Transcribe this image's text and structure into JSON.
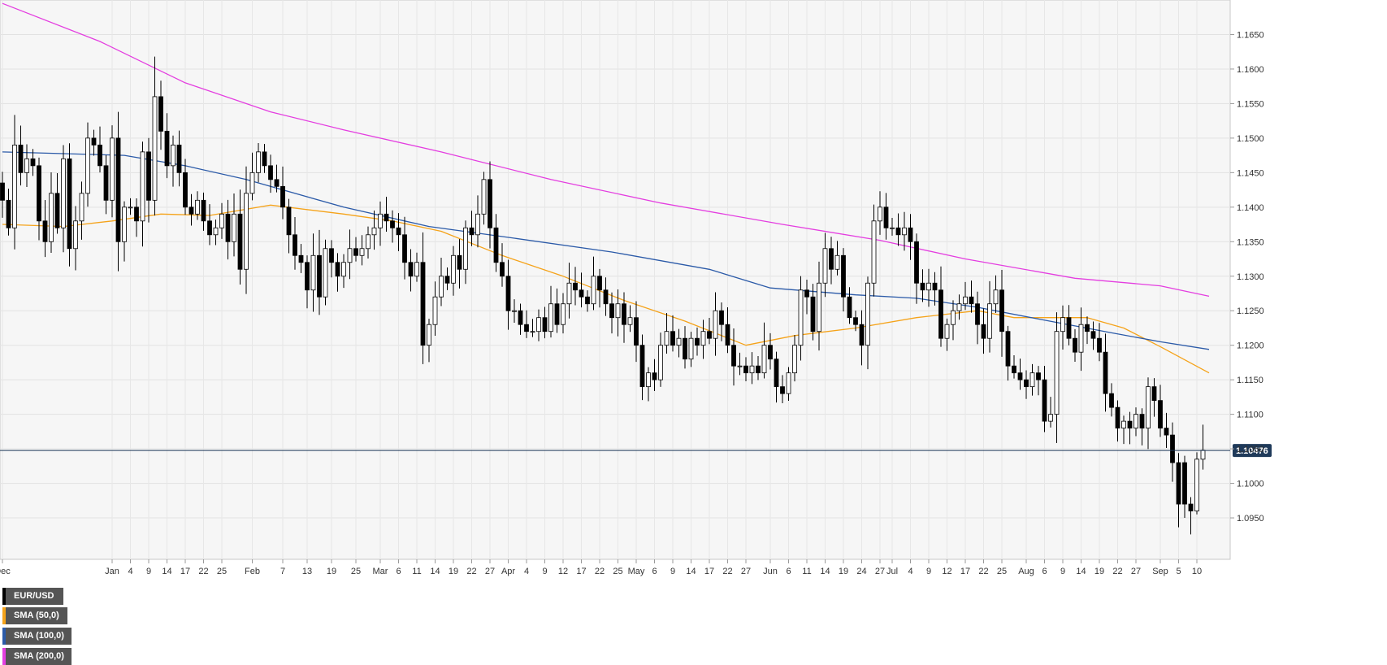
{
  "chart_data": {
    "type": "candlestick",
    "symbol": "EUR/USD",
    "last_price_label": "1.10476",
    "last_price": 1.10476,
    "ylim": [
      1.089,
      1.17
    ],
    "y_ticks": [
      "1.1650",
      "1.1600",
      "1.1550",
      "1.1500",
      "1.1450",
      "1.1400",
      "1.1350",
      "1.1300",
      "1.1250",
      "1.1200",
      "1.1150",
      "1.1100",
      "1.1050",
      "1.1000",
      "1.0950"
    ],
    "x_ticks": [
      {
        "label": "Dec",
        "bar": 0
      },
      {
        "label": "Jan",
        "bar": 18
      },
      {
        "label": "4",
        "bar": 21
      },
      {
        "label": "9",
        "bar": 24
      },
      {
        "label": "14",
        "bar": 27
      },
      {
        "label": "17",
        "bar": 30
      },
      {
        "label": "22",
        "bar": 33
      },
      {
        "label": "25",
        "bar": 36
      },
      {
        "label": "Feb",
        "bar": 41
      },
      {
        "label": "7",
        "bar": 46
      },
      {
        "label": "13",
        "bar": 50
      },
      {
        "label": "19",
        "bar": 54
      },
      {
        "label": "25",
        "bar": 58
      },
      {
        "label": "Mar",
        "bar": 62
      },
      {
        "label": "6",
        "bar": 65
      },
      {
        "label": "11",
        "bar": 68
      },
      {
        "label": "14",
        "bar": 71
      },
      {
        "label": "19",
        "bar": 74
      },
      {
        "label": "22",
        "bar": 77
      },
      {
        "label": "27",
        "bar": 80
      },
      {
        "label": "Apr",
        "bar": 83
      },
      {
        "label": "4",
        "bar": 86
      },
      {
        "label": "9",
        "bar": 89
      },
      {
        "label": "12",
        "bar": 92
      },
      {
        "label": "17",
        "bar": 95
      },
      {
        "label": "22",
        "bar": 98
      },
      {
        "label": "25",
        "bar": 101
      },
      {
        "label": "May",
        "bar": 104
      },
      {
        "label": "6",
        "bar": 107
      },
      {
        "label": "9",
        "bar": 110
      },
      {
        "label": "14",
        "bar": 113
      },
      {
        "label": "17",
        "bar": 116
      },
      {
        "label": "22",
        "bar": 119
      },
      {
        "label": "27",
        "bar": 122
      },
      {
        "label": "Jun",
        "bar": 126
      },
      {
        "label": "6",
        "bar": 129
      },
      {
        "label": "11",
        "bar": 132
      },
      {
        "label": "14",
        "bar": 135
      },
      {
        "label": "19",
        "bar": 138
      },
      {
        "label": "24",
        "bar": 141
      },
      {
        "label": "27",
        "bar": 144
      },
      {
        "label": "Jul",
        "bar": 146
      },
      {
        "label": "4",
        "bar": 149
      },
      {
        "label": "9",
        "bar": 152
      },
      {
        "label": "12",
        "bar": 155
      },
      {
        "label": "17",
        "bar": 158
      },
      {
        "label": "22",
        "bar": 161
      },
      {
        "label": "25",
        "bar": 164
      },
      {
        "label": "Aug",
        "bar": 168
      },
      {
        "label": "6",
        "bar": 171
      },
      {
        "label": "9",
        "bar": 174
      },
      {
        "label": "14",
        "bar": 177
      },
      {
        "label": "19",
        "bar": 180
      },
      {
        "label": "22",
        "bar": 183
      },
      {
        "label": "27",
        "bar": 186
      },
      {
        "label": "Sep",
        "bar": 190
      },
      {
        "label": "5",
        "bar": 193
      },
      {
        "label": "10",
        "bar": 196
      }
    ],
    "closes": [
      1.141,
      1.137,
      1.149,
      1.145,
      1.147,
      1.146,
      1.138,
      1.135,
      1.142,
      1.137,
      1.147,
      1.134,
      1.138,
      1.142,
      1.15,
      1.149,
      1.146,
      1.141,
      1.15,
      1.135,
      1.14,
      1.14,
      1.138,
      1.148,
      1.141,
      1.156,
      1.151,
      1.146,
      1.149,
      1.145,
      1.14,
      1.139,
      1.141,
      1.138,
      1.136,
      1.137,
      1.139,
      1.135,
      1.139,
      1.131,
      1.142,
      1.145,
      1.148,
      1.146,
      1.144,
      1.143,
      1.14,
      1.136,
      1.133,
      1.132,
      1.128,
      1.133,
      1.127,
      1.134,
      1.132,
      1.13,
      1.132,
      1.134,
      1.133,
      1.134,
      1.136,
      1.137,
      1.139,
      1.138,
      1.137,
      1.136,
      1.132,
      1.13,
      1.132,
      1.12,
      1.123,
      1.127,
      1.13,
      1.129,
      1.133,
      1.131,
      1.137,
      1.136,
      1.139,
      1.144,
      1.137,
      1.132,
      1.13,
      1.125,
      1.125,
      1.123,
      1.122,
      1.122,
      1.124,
      1.122,
      1.126,
      1.123,
      1.126,
      1.129,
      1.128,
      1.127,
      1.126,
      1.13,
      1.128,
      1.126,
      1.124,
      1.126,
      1.123,
      1.124,
      1.12,
      1.114,
      1.116,
      1.115,
      1.12,
      1.122,
      1.12,
      1.121,
      1.118,
      1.121,
      1.12,
      1.122,
      1.121,
      1.125,
      1.123,
      1.12,
      1.117,
      1.117,
      1.116,
      1.117,
      1.116,
      1.12,
      1.118,
      1.114,
      1.113,
      1.116,
      1.12,
      1.128,
      1.127,
      1.122,
      1.129,
      1.134,
      1.131,
      1.133,
      1.127,
      1.124,
      1.123,
      1.12,
      1.129,
      1.138,
      1.14,
      1.137,
      1.137,
      1.136,
      1.137,
      1.135,
      1.129,
      1.128,
      1.129,
      1.128,
      1.121,
      1.123,
      1.125,
      1.126,
      1.127,
      1.126,
      1.123,
      1.121,
      1.126,
      1.128,
      1.122,
      1.117,
      1.116,
      1.115,
      1.114,
      1.116,
      1.115,
      1.109,
      1.11,
      1.122,
      1.124,
      1.121,
      1.119,
      1.123,
      1.122,
      1.121,
      1.119,
      1.113,
      1.111,
      1.108,
      1.109,
      1.108,
      1.11,
      1.108,
      1.114,
      1.112,
      1.108,
      1.107,
      1.103,
      1.097,
      1.096,
      1.097,
      1.104,
      1.105
    ],
    "last_candles": [
      {
        "open": 1.103,
        "high": 1.104,
        "low": 1.095,
        "close": 1.097
      },
      {
        "open": 1.097,
        "high": 1.098,
        "low": 1.0926,
        "close": 1.096
      },
      {
        "open": 1.096,
        "high": 1.1045,
        "low": 1.0955,
        "close": 1.1035
      },
      {
        "open": 1.1035,
        "high": 1.1085,
        "low": 1.102,
        "close": 1.1048
      }
    ],
    "series": [
      {
        "name": "SMA (50,0)",
        "color": "#f5a31a",
        "kind": "sma",
        "period": 50,
        "start_bar": 0,
        "anchors": [
          [
            0,
            1.1375
          ],
          [
            10,
            1.1372
          ],
          [
            18,
            1.138
          ],
          [
            26,
            1.139
          ],
          [
            34,
            1.1388
          ],
          [
            44,
            1.1403
          ],
          [
            56,
            1.139
          ],
          [
            64,
            1.138
          ],
          [
            72,
            1.1365
          ],
          [
            82,
            1.133
          ],
          [
            92,
            1.13
          ],
          [
            102,
            1.1265
          ],
          [
            112,
            1.1235
          ],
          [
            122,
            1.12
          ],
          [
            130,
            1.1214
          ],
          [
            140,
            1.1225
          ],
          [
            150,
            1.124
          ],
          [
            160,
            1.125
          ],
          [
            166,
            1.124
          ],
          [
            178,
            1.124
          ],
          [
            184,
            1.1225
          ],
          [
            190,
            1.1198
          ],
          [
            198,
            1.116
          ]
        ]
      },
      {
        "name": "SMA (100,0)",
        "color": "#2b5aa8",
        "kind": "sma",
        "period": 100,
        "start_bar": 0,
        "anchors": [
          [
            0,
            1.148
          ],
          [
            20,
            1.1475
          ],
          [
            30,
            1.146
          ],
          [
            40,
            1.144
          ],
          [
            56,
            1.14
          ],
          [
            70,
            1.1372
          ],
          [
            84,
            1.1355
          ],
          [
            100,
            1.1335
          ],
          [
            116,
            1.131
          ],
          [
            126,
            1.1283
          ],
          [
            140,
            1.1273
          ],
          [
            150,
            1.1268
          ],
          [
            160,
            1.1255
          ],
          [
            170,
            1.1238
          ],
          [
            182,
            1.1218
          ],
          [
            190,
            1.1205
          ],
          [
            198,
            1.1194
          ]
        ]
      },
      {
        "name": "SMA (200,0)",
        "color": "#e43ee0",
        "kind": "sma",
        "period": 200,
        "start_bar": 0,
        "anchors": [
          [
            0,
            1.1695
          ],
          [
            16,
            1.164
          ],
          [
            30,
            1.158
          ],
          [
            44,
            1.1538
          ],
          [
            56,
            1.1512
          ],
          [
            72,
            1.148
          ],
          [
            90,
            1.144
          ],
          [
            108,
            1.1406
          ],
          [
            128,
            1.1375
          ],
          [
            144,
            1.1352
          ],
          [
            158,
            1.1325
          ],
          [
            176,
            1.1297
          ],
          [
            190,
            1.1286
          ],
          [
            198,
            1.1271
          ]
        ]
      }
    ],
    "legend": [
      "EUR/USD",
      "SMA (50,0)",
      "SMA (100,0)",
      "SMA (200,0)"
    ],
    "legend_colors": [
      "#000000",
      "#f5a31a",
      "#2b5aa8",
      "#e43ee0"
    ],
    "grid": true,
    "background": "#f6f6f6",
    "up_color": "#ffffff",
    "down_color": "#000000",
    "price_line_color": "#1f3a5a"
  }
}
